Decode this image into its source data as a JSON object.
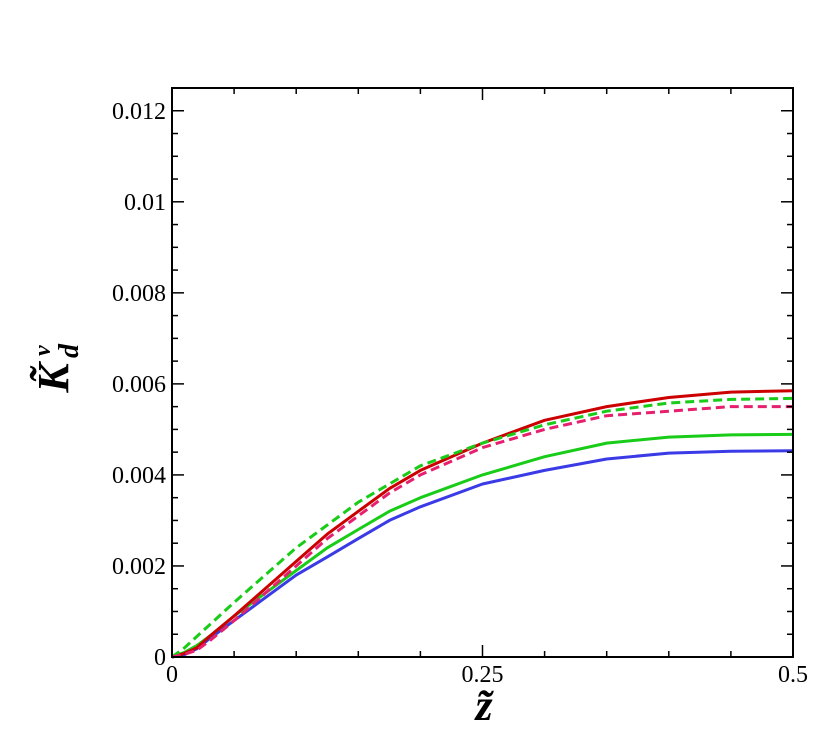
{
  "chart_data": {
    "type": "line",
    "xlabel": "z̃",
    "ylabel": "K̃",
    "ylabel_sup": "v",
    "ylabel_sub": "d",
    "xlim": [
      0,
      0.5
    ],
    "ylim": [
      0,
      0.0125
    ],
    "x_ticks": [
      0,
      0.25,
      0.5
    ],
    "x_tick_labels": [
      "0",
      "0.25",
      "0.5"
    ],
    "y_ticks": [
      0,
      0.002,
      0.004,
      0.006,
      0.008,
      0.01,
      0.012
    ],
    "y_tick_labels": [
      "0",
      "0.002",
      "0.004",
      "0.006",
      "0.008",
      "0.01",
      "0.012"
    ],
    "grid": false,
    "series": [
      {
        "color": "#3a3ae6",
        "dash": "solid",
        "x": [
          0,
          0.01,
          0.02,
          0.03,
          0.05,
          0.075,
          0.1,
          0.125,
          0.15,
          0.175,
          0.2,
          0.25,
          0.3,
          0.35,
          0.4,
          0.45,
          0.5
        ],
        "y": [
          0,
          5e-05,
          0.00018,
          0.0004,
          0.0008,
          0.0013,
          0.0018,
          0.0022,
          0.0026,
          0.003,
          0.0033,
          0.0038,
          0.0041,
          0.00435,
          0.00448,
          0.00452,
          0.00453
        ]
      },
      {
        "color": "#18cc18",
        "dash": "solid",
        "x": [
          0,
          0.01,
          0.02,
          0.03,
          0.05,
          0.075,
          0.1,
          0.125,
          0.15,
          0.175,
          0.2,
          0.25,
          0.3,
          0.35,
          0.4,
          0.45,
          0.5
        ],
        "y": [
          0,
          0.0001,
          0.00025,
          0.00045,
          0.0009,
          0.0014,
          0.0019,
          0.0024,
          0.0028,
          0.0032,
          0.0035,
          0.004,
          0.0044,
          0.0047,
          0.00483,
          0.00488,
          0.00489
        ]
      },
      {
        "color": "#cc0000",
        "dash": "solid",
        "x": [
          0,
          0.01,
          0.02,
          0.03,
          0.05,
          0.075,
          0.1,
          0.125,
          0.15,
          0.175,
          0.2,
          0.25,
          0.3,
          0.35,
          0.4,
          0.45,
          0.5
        ],
        "y": [
          0,
          8e-05,
          0.0002,
          0.00045,
          0.0009,
          0.0015,
          0.0021,
          0.0027,
          0.0032,
          0.0037,
          0.0041,
          0.0047,
          0.0052,
          0.0055,
          0.0057,
          0.00582,
          0.00585
        ]
      },
      {
        "color": "#18cc18",
        "dash": "dashed",
        "x": [
          0,
          0.01,
          0.02,
          0.03,
          0.05,
          0.075,
          0.1,
          0.125,
          0.15,
          0.175,
          0.2,
          0.25,
          0.3,
          0.35,
          0.4,
          0.45,
          0.5
        ],
        "y": [
          0,
          0.0002,
          0.00045,
          0.0007,
          0.0012,
          0.0018,
          0.0024,
          0.0029,
          0.0034,
          0.0038,
          0.0042,
          0.0047,
          0.0051,
          0.0054,
          0.00558,
          0.00566,
          0.00568
        ]
      },
      {
        "color": "#e6206e",
        "dash": "dashed",
        "x": [
          0,
          0.01,
          0.02,
          0.03,
          0.05,
          0.075,
          0.1,
          0.125,
          0.15,
          0.175,
          0.2,
          0.25,
          0.3,
          0.35,
          0.4,
          0.45,
          0.5
        ],
        "y": [
          0,
          6e-05,
          0.00015,
          0.00035,
          0.0008,
          0.0014,
          0.002,
          0.0026,
          0.0031,
          0.0036,
          0.004,
          0.0046,
          0.005,
          0.0053,
          0.0054,
          0.0055,
          0.0055
        ]
      }
    ]
  }
}
